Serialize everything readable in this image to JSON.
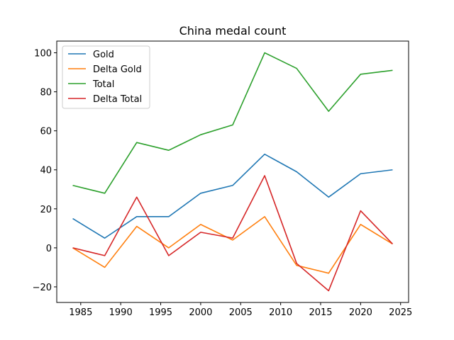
{
  "chart_data": {
    "type": "line",
    "title": "China medal count",
    "xlabel": "",
    "ylabel": "",
    "x": [
      1984,
      1988,
      1992,
      1996,
      2000,
      2004,
      2008,
      2012,
      2016,
      2020,
      2024
    ],
    "series": [
      {
        "name": "Gold",
        "color": "#1f77b4",
        "values": [
          15,
          5,
          16,
          16,
          28,
          32,
          48,
          39,
          26,
          38,
          40
        ]
      },
      {
        "name": "Delta Gold",
        "color": "#ff7f0e",
        "values": [
          0,
          -10,
          11,
          0,
          12,
          4,
          16,
          -9,
          -13,
          12,
          2
        ]
      },
      {
        "name": "Total",
        "color": "#2ca02c",
        "values": [
          32,
          28,
          54,
          50,
          58,
          63,
          100,
          92,
          70,
          89,
          91
        ]
      },
      {
        "name": "Delta Total",
        "color": "#d62728",
        "values": [
          0,
          -4,
          26,
          -4,
          8,
          5,
          37,
          -8,
          -22,
          19,
          2
        ]
      }
    ],
    "xlim": [
      1982,
      2026
    ],
    "ylim": [
      -28,
      106
    ],
    "xticks": [
      1985,
      1990,
      1995,
      2000,
      2005,
      2010,
      2015,
      2020,
      2025
    ],
    "yticks": [
      -20,
      0,
      20,
      40,
      60,
      80,
      100
    ],
    "grid": false,
    "legend_position": "upper-left"
  }
}
